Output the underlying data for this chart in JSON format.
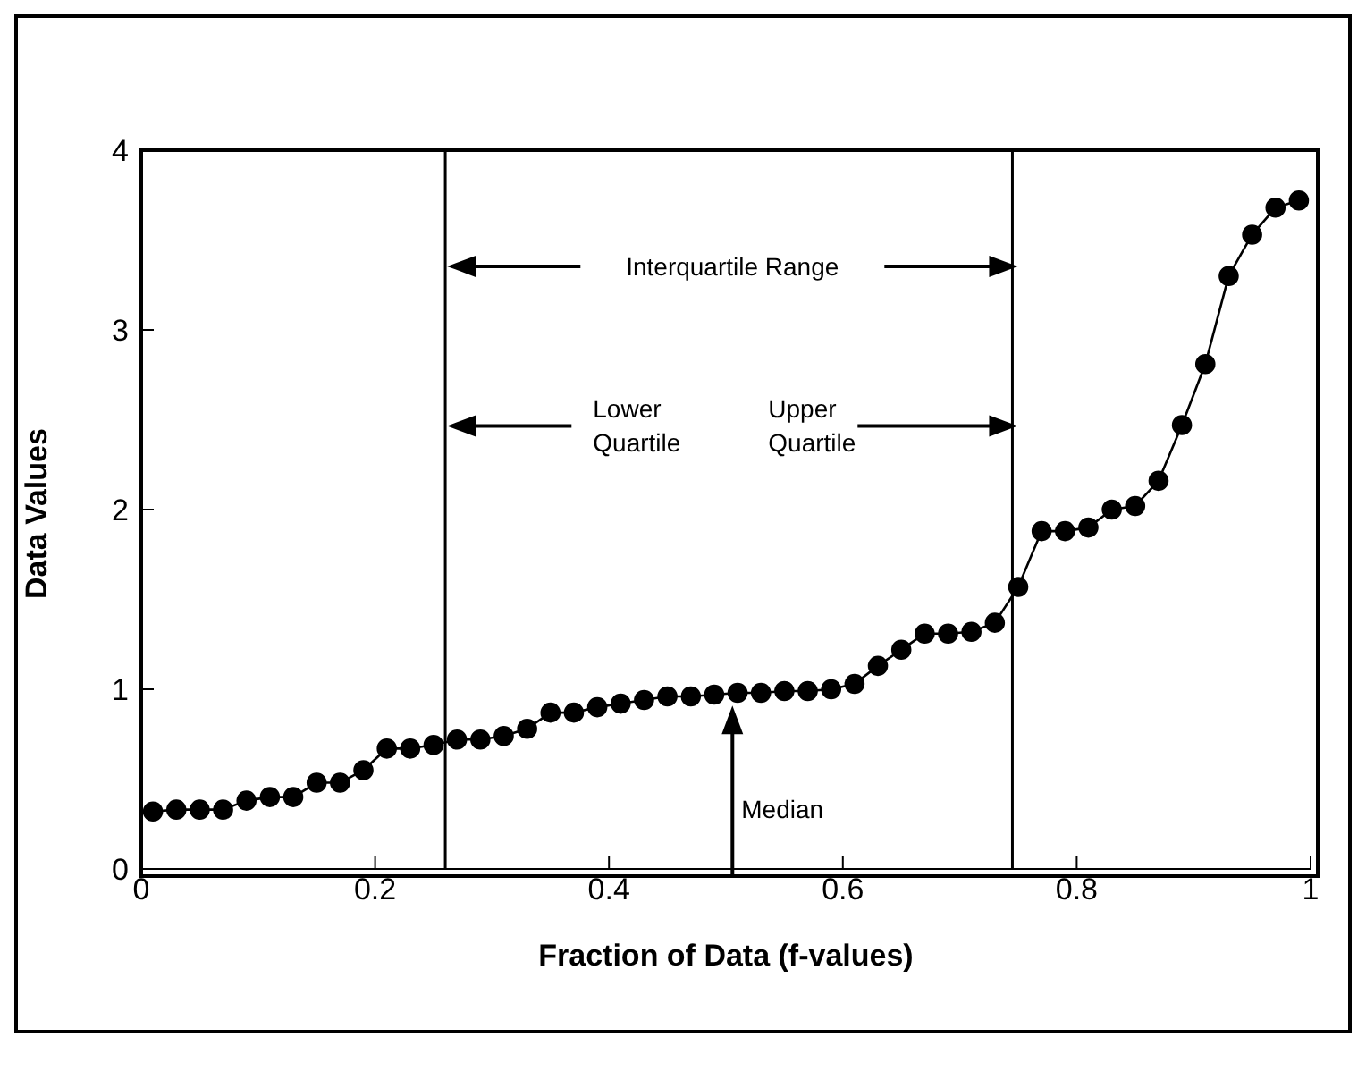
{
  "chart_data": {
    "type": "line",
    "xlabel": "Fraction of Data (f-values)",
    "ylabel": "Data Values",
    "x": [
      0.01,
      0.03,
      0.05,
      0.07,
      0.09,
      0.11,
      0.13,
      0.15,
      0.17,
      0.19,
      0.21,
      0.23,
      0.25,
      0.27,
      0.29,
      0.31,
      0.33,
      0.35,
      0.37,
      0.39,
      0.41,
      0.43,
      0.45,
      0.47,
      0.49,
      0.51,
      0.53,
      0.55,
      0.57,
      0.59,
      0.61,
      0.63,
      0.65,
      0.67,
      0.69,
      0.71,
      0.73,
      0.75,
      0.77,
      0.79,
      0.81,
      0.83,
      0.85,
      0.87,
      0.89,
      0.91,
      0.93,
      0.95,
      0.97,
      0.99
    ],
    "series": [
      {
        "color": "#000000",
        "values": [
          0.32,
          0.33,
          0.33,
          0.33,
          0.38,
          0.4,
          0.4,
          0.48,
          0.48,
          0.55,
          0.67,
          0.67,
          0.69,
          0.72,
          0.72,
          0.74,
          0.78,
          0.87,
          0.87,
          0.9,
          0.92,
          0.94,
          0.96,
          0.96,
          0.97,
          0.98,
          0.98,
          0.99,
          0.99,
          1.0,
          1.03,
          1.13,
          1.22,
          1.31,
          1.31,
          1.32,
          1.37,
          1.57,
          1.88,
          1.88,
          1.9,
          2.0,
          2.02,
          2.16,
          2.47,
          2.81,
          3.3,
          3.53,
          3.68,
          3.72
        ]
      }
    ],
    "xlim": [
      0,
      1
    ],
    "xticks": [
      0,
      0.2,
      0.4,
      0.6,
      0.8,
      1
    ],
    "ylim": [
      0,
      4
    ],
    "yticks": [
      0,
      1,
      2,
      3,
      4
    ],
    "marker": "circle",
    "line_style": "solid",
    "grid": false,
    "legend": false,
    "ref_lines": [
      {
        "axis": "x",
        "value": 0.26,
        "color": "#000000"
      },
      {
        "axis": "x",
        "value": 0.745,
        "color": "#000000"
      }
    ],
    "annotations": [
      "Interquartile Range",
      "Lower Quartile",
      "Upper Quartile",
      "Median"
    ]
  }
}
